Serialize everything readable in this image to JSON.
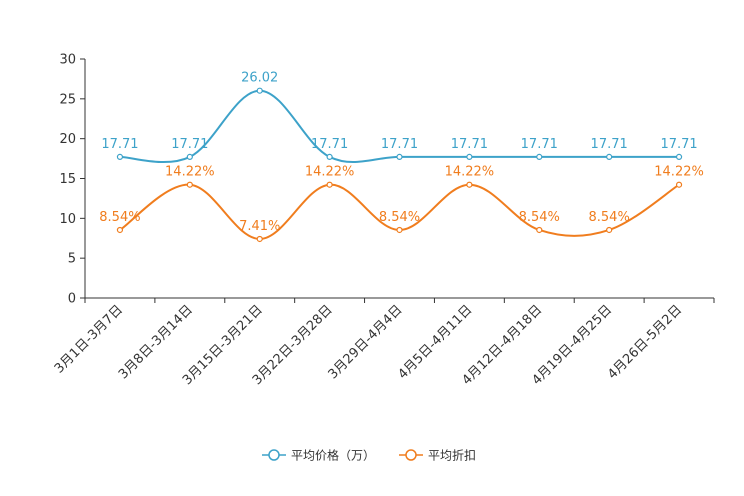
{
  "chart_data": {
    "type": "line",
    "title": "",
    "xlabel": "",
    "ylabel": "",
    "ylim": [
      0,
      30
    ],
    "yticks": [
      0,
      5,
      10,
      15,
      20,
      25,
      30
    ],
    "grid": false,
    "legend_position": "bottom-center",
    "categories": [
      "3月1日-3月7日",
      "3月8日-3月14日",
      "3月15日-3月21日",
      "3月22日-3月28日",
      "3月29日-4月4日",
      "4月5日-4月11日",
      "4月12日-4月18日",
      "4月19日-4月25日",
      "4月26日-5月2日"
    ],
    "series": [
      {
        "name": "平均价格（万）",
        "color": "#3da2c9",
        "values": [
          17.71,
          17.71,
          26.02,
          17.71,
          17.71,
          17.71,
          17.71,
          17.71,
          17.71
        ],
        "labels": [
          "17.71",
          "17.71",
          "26.02",
          "17.71",
          "17.71",
          "17.71",
          "17.71",
          "17.71",
          "17.71"
        ]
      },
      {
        "name": "平均折扣",
        "color": "#f07d1e",
        "values": [
          8.54,
          14.22,
          7.41,
          14.22,
          8.54,
          14.22,
          8.54,
          8.54,
          14.22
        ],
        "labels": [
          "8.54%",
          "14.22%",
          "7.41%",
          "14.22%",
          "8.54%",
          "14.22%",
          "8.54%",
          "8.54%",
          "14.22%"
        ]
      }
    ]
  }
}
